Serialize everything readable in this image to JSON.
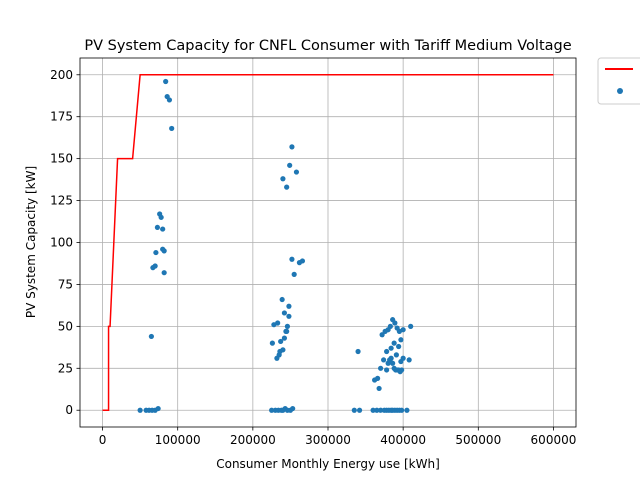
{
  "chart_data": {
    "type": "scatter",
    "title": "PV System Capacity for CNFL Consumer with Tariff Medium Voltage",
    "xlabel": "Consumer Monthly Energy use [kWh]",
    "ylabel": "PV System Capacity [kW]",
    "xlim": [
      -30000,
      630000
    ],
    "ylim": [
      -10,
      210
    ],
    "xticks": [
      0,
      100000,
      200000,
      300000,
      400000,
      500000,
      600000
    ],
    "yticks": [
      0,
      25,
      50,
      75,
      100,
      125,
      150,
      175,
      200
    ],
    "grid": true,
    "legend_position": "outside-top-right",
    "series": [
      {
        "type": "line",
        "color": "#ff0000",
        "x": [
          0,
          8000,
          8000,
          10000,
          10000,
          20000,
          20000,
          40000,
          40000,
          50000,
          50000,
          600000
        ],
        "y": [
          0,
          0,
          50,
          50,
          50,
          150,
          150,
          150,
          150,
          200,
          200,
          200
        ]
      },
      {
        "type": "scatter",
        "color": "#1f77b4",
        "x": [
          50000,
          58000,
          62000,
          66000,
          70000,
          74000,
          65000,
          67000,
          70000,
          71000,
          73000,
          76000,
          78000,
          80000,
          82000,
          80000,
          82000,
          84000,
          86000,
          89000,
          92000,
          225000,
          230000,
          234000,
          238000,
          240000,
          243000,
          246000,
          250000,
          253000,
          228000,
          232000,
          235000,
          237000,
          240000,
          242000,
          244000,
          246000,
          248000,
          226000,
          233000,
          236000,
          239000,
          242000,
          245000,
          248000,
          252000,
          255000,
          240000,
          245000,
          249000,
          252000,
          258000,
          262000,
          266000,
          335000,
          342000,
          360000,
          365000,
          370000,
          375000,
          378000,
          381000,
          384000,
          386000,
          389000,
          392000,
          395000,
          398000,
          405000,
          340000,
          362000,
          366000,
          370000,
          374000,
          378000,
          380000,
          382000,
          384000,
          386000,
          388000,
          390000,
          392000,
          394000,
          396000,
          398000,
          408000,
          372000,
          376000,
          380000,
          383000,
          386000,
          389000,
          392000,
          395000,
          397000,
          400000,
          410000,
          368000,
          378000,
          384000,
          388000,
          391000,
          394000,
          397000,
          400000
        ],
        "y": [
          0,
          0,
          0,
          0,
          0,
          1,
          44,
          85,
          86,
          94,
          109,
          117,
          115,
          108,
          82,
          96,
          95,
          196,
          187,
          185,
          168,
          0,
          0,
          0,
          0,
          0,
          1,
          0,
          0,
          1,
          51,
          31,
          33,
          41,
          36,
          43,
          47,
          50,
          62,
          40,
          52,
          35,
          66,
          58,
          47,
          56,
          90,
          81,
          138,
          133,
          146,
          157,
          142,
          88,
          89,
          0,
          0,
          0,
          0,
          0,
          0,
          0,
          0,
          0,
          0,
          0,
          0,
          0,
          0,
          0,
          35,
          18,
          19,
          25,
          30,
          24,
          28,
          30,
          31,
          28,
          25,
          24,
          24,
          24,
          23,
          24,
          30,
          45,
          47,
          48,
          50,
          54,
          52,
          49,
          47,
          42,
          48,
          50,
          13,
          35,
          37,
          40,
          33,
          38,
          29,
          31
        ]
      }
    ]
  }
}
